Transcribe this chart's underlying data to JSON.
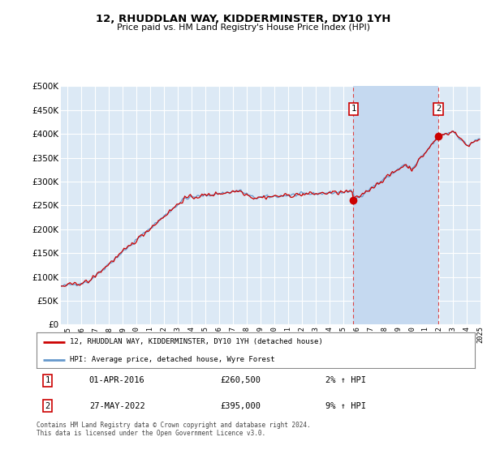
{
  "title": "12, RHUDDLAN WAY, KIDDERMINSTER, DY10 1YH",
  "subtitle": "Price paid vs. HM Land Registry's House Price Index (HPI)",
  "ylim": [
    0,
    500000
  ],
  "yticks": [
    0,
    50000,
    100000,
    150000,
    200000,
    250000,
    300000,
    350000,
    400000,
    450000,
    500000
  ],
  "fig_bg_color": "#ffffff",
  "plot_bg_color": "#dce9f5",
  "shade_color": "#c5d9f0",
  "grid_color": "#ffffff",
  "hpi_color": "#6699cc",
  "price_color": "#cc0000",
  "purchase1": {
    "date_num": 2016.25,
    "price": 260500,
    "label": "1"
  },
  "purchase2": {
    "date_num": 2022.42,
    "price": 395000,
    "label": "2"
  },
  "legend_entry1": "12, RHUDDLAN WAY, KIDDERMINSTER, DY10 1YH (detached house)",
  "legend_entry2": "HPI: Average price, detached house, Wyre Forest",
  "table_row1": [
    "1",
    "01-APR-2016",
    "£260,500",
    "2% ↑ HPI"
  ],
  "table_row2": [
    "2",
    "27-MAY-2022",
    "£395,000",
    "9% ↑ HPI"
  ],
  "footnote": "Contains HM Land Registry data © Crown copyright and database right 2024.\nThis data is licensed under the Open Government Licence v3.0.",
  "xstart": 1995.0,
  "xend": 2025.5
}
